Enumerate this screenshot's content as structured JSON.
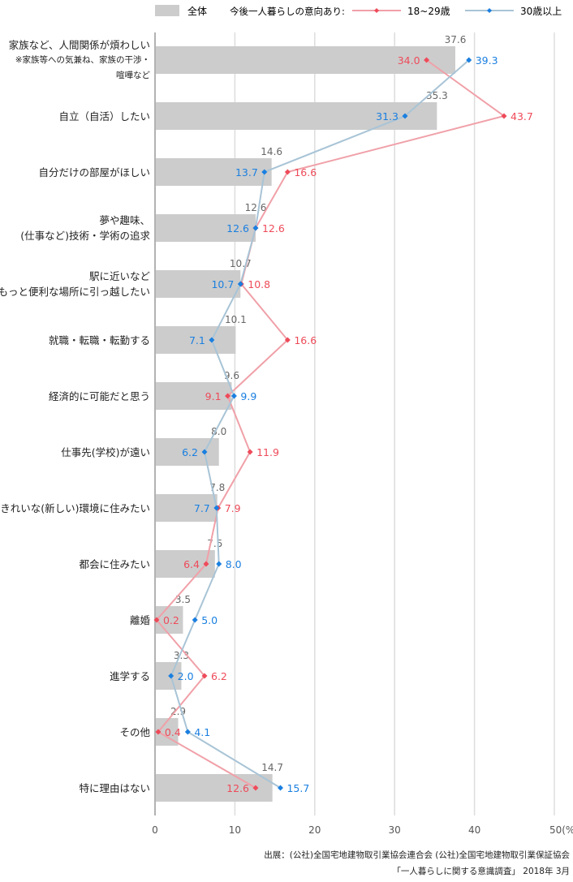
{
  "chart_data": {
    "type": "bar",
    "orientation": "horizontal",
    "xlabel_unit": "(%)",
    "xlim": [
      0,
      50
    ],
    "xticks": [
      "0",
      "10",
      "20",
      "30",
      "40",
      "50(%)"
    ],
    "grid": true,
    "legend": {
      "placement": "top-right",
      "overall": "全体",
      "group_label": "今後一人暮らしの意向あり:",
      "young": "18~29歳",
      "older": "30歳以上"
    },
    "categories": [
      {
        "lines": [
          "家族など、人間関係が煩わしい"
        ],
        "sub": [
          "※家族等への気兼ね、家族の干渉・",
          "喧嘩など"
        ]
      },
      {
        "lines": [
          "自立（自活）したい"
        ]
      },
      {
        "lines": [
          "自分だけの部屋がほしい"
        ]
      },
      {
        "lines": [
          "夢や趣味、",
          "(仕事など)技術・学術の追求"
        ]
      },
      {
        "lines": [
          "駅に近いなど",
          "もっと便利な場所に引っ越したい"
        ]
      },
      {
        "lines": [
          "就職・転職・転勤する"
        ]
      },
      {
        "lines": [
          "経済的に可能だと思う"
        ]
      },
      {
        "lines": [
          "仕事先(学校)が遠い"
        ]
      },
      {
        "lines": [
          "きれいな(新しい)環境に住みたい"
        ]
      },
      {
        "lines": [
          "都会に住みたい"
        ]
      },
      {
        "lines": [
          "離婚"
        ]
      },
      {
        "lines": [
          "進学する"
        ]
      },
      {
        "lines": [
          "その他"
        ]
      },
      {
        "lines": [
          "特に理由はない"
        ]
      }
    ],
    "series": [
      {
        "name": "全体",
        "type": "bar",
        "color": "#cccccc",
        "values": [
          "37.6",
          "35.3",
          "14.6",
          "12.6",
          "10.7",
          "10.1",
          "9.6",
          "8.0",
          "7.8",
          "7.5",
          "3.5",
          "3.3",
          "2.9",
          "14.7"
        ]
      },
      {
        "name": "18~29歳",
        "type": "line",
        "color": "#f0a0a8",
        "label_color": "#ee4b5a",
        "values": [
          "34.0",
          "43.7",
          "16.6",
          "12.6",
          "10.8",
          "16.6",
          "9.1",
          "11.9",
          "7.9",
          "6.4",
          "0.2",
          "6.2",
          "0.4",
          "12.6"
        ]
      },
      {
        "name": "30歳以上",
        "type": "line",
        "color": "#a8c4d6",
        "label_color": "#1a7fe0",
        "values": [
          "39.3",
          "31.3",
          "13.7",
          "12.6",
          "10.7",
          "7.1",
          "9.9",
          "6.2",
          "7.7",
          "8.0",
          "5.0",
          "2.0",
          "4.1",
          "15.7"
        ]
      }
    ]
  },
  "source": {
    "line1": "出展：(公社)全国宅地建物取引業協会連合会 (公社)全国宅地建物取引業保証協会",
    "line2": "「一人暮らしに関する意識調査」 2018年 3月"
  }
}
